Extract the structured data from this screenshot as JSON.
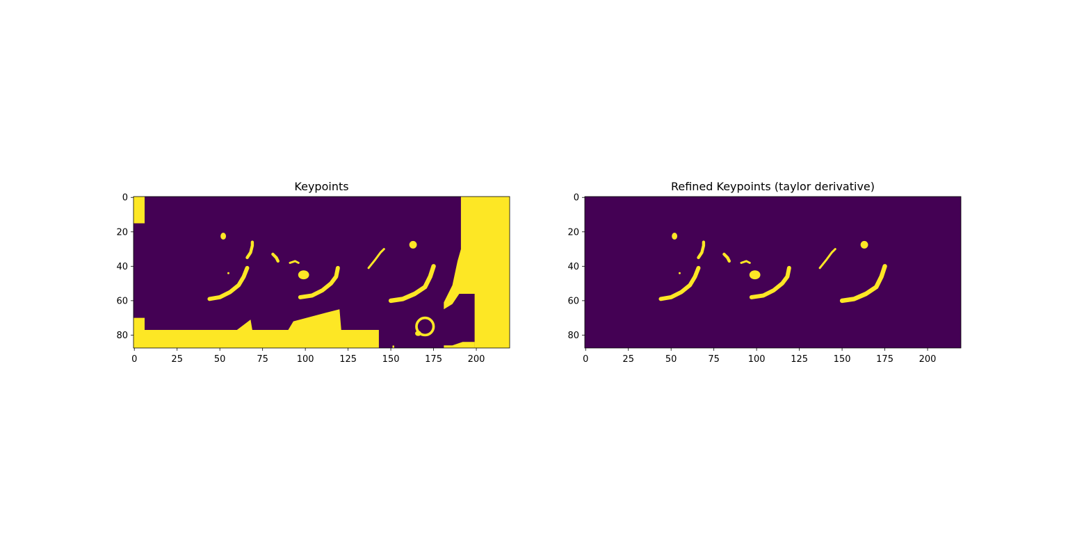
{
  "chart_data": [
    {
      "type": "heatmap",
      "title": "Keypoints",
      "image_shape": [
        88,
        220
      ],
      "colormap": "viridis (binary mask)",
      "colors": {
        "background": "#440154",
        "foreground": "#fde725"
      },
      "xticks": [
        0,
        25,
        50,
        75,
        100,
        125,
        150,
        175,
        200
      ],
      "yticks": [
        0,
        20,
        40,
        60,
        80
      ],
      "regions": [
        {
          "kind": "rect",
          "x": [
            -0.5,
            6
          ],
          "y": [
            -0.5,
            15
          ]
        },
        {
          "kind": "polygon",
          "points": [
            [
              -0.5,
              70
            ],
            [
              6,
              70
            ],
            [
              6,
              77
            ],
            [
              60,
              77
            ],
            [
              68,
              71
            ],
            [
              69,
              77
            ],
            [
              90,
              77
            ],
            [
              93,
              72
            ],
            [
              112,
              67
            ],
            [
              120,
              65
            ],
            [
              121,
              77
            ],
            [
              143,
              77
            ],
            [
              143,
              87.5
            ],
            [
              -0.5,
              87.5
            ]
          ]
        },
        {
          "kind": "polygon",
          "points": [
            [
              191,
              -0.5
            ],
            [
              219.5,
              -0.5
            ],
            [
              219.5,
              87.5
            ],
            [
              199,
              87.5
            ],
            [
              199,
              56
            ],
            [
              190,
              56
            ],
            [
              186,
              62
            ],
            [
              181,
              65
            ],
            [
              181,
              61
            ],
            [
              186,
              51
            ],
            [
              189,
              37
            ],
            [
              191,
              30
            ]
          ]
        },
        {
          "kind": "polygon",
          "points": [
            [
              181,
              87.5
            ],
            [
              199,
              87.5
            ],
            [
              199,
              84
            ],
            [
              192,
              84
            ],
            [
              186,
              86
            ],
            [
              181,
              86
            ]
          ]
        },
        {
          "kind": "rect",
          "x": [
            151,
            152
          ],
          "y": [
            86,
            87.5
          ]
        },
        {
          "kind": "ring",
          "cx": 170,
          "cy": 75,
          "rx": 5,
          "ry": 5,
          "w": 1.5
        },
        {
          "kind": "arc",
          "points": [
            [
              44,
              59
            ],
            [
              50,
              58
            ],
            [
              56,
              55
            ],
            [
              61,
              51
            ],
            [
              64,
              46
            ],
            [
              66,
              41
            ]
          ],
          "w": 2.4
        },
        {
          "kind": "arc",
          "points": [
            [
              97,
              58
            ],
            [
              104,
              57
            ],
            [
              110,
              54
            ],
            [
              115,
              50
            ],
            [
              118,
              46
            ],
            [
              119,
              41
            ]
          ],
          "w": 2.4
        },
        {
          "kind": "arc",
          "points": [
            [
              150,
              60
            ],
            [
              157,
              59
            ],
            [
              164,
              56
            ],
            [
              170,
              52
            ],
            [
              173,
              46
            ],
            [
              175,
              40
            ]
          ],
          "w": 2.6
        },
        {
          "kind": "arc",
          "points": [
            [
              66,
              35
            ],
            [
              68,
              32
            ],
            [
              69,
              28
            ],
            [
              69,
              26
            ]
          ],
          "w": 1.8
        },
        {
          "kind": "arc",
          "points": [
            [
              137,
              41
            ],
            [
              141,
              36
            ],
            [
              144,
              32
            ],
            [
              146,
              30
            ]
          ],
          "w": 1.2
        },
        {
          "kind": "arc",
          "points": [
            [
              81,
              33
            ],
            [
              83,
              35
            ],
            [
              84,
              37
            ]
          ],
          "w": 1.8
        },
        {
          "kind": "arc",
          "points": [
            [
              91,
              38
            ],
            [
              94,
              37
            ],
            [
              96,
              38
            ]
          ],
          "w": 1.2
        },
        {
          "kind": "blob",
          "cx": 52,
          "cy": 22.5,
          "rx": 1.6,
          "ry": 2
        },
        {
          "kind": "blob",
          "cx": 99,
          "cy": 45,
          "rx": 3.2,
          "ry": 2.6
        },
        {
          "kind": "blob",
          "cx": 163,
          "cy": 27.5,
          "rx": 2.2,
          "ry": 2.2
        },
        {
          "kind": "blob",
          "cx": 55,
          "cy": 44,
          "rx": 0.6,
          "ry": 0.6
        },
        {
          "kind": "blob",
          "cx": 166,
          "cy": 79,
          "rx": 1.8,
          "ry": 1.5
        }
      ]
    },
    {
      "type": "heatmap",
      "title": "Refined Keypoints (taylor derivative)",
      "image_shape": [
        88,
        220
      ],
      "colormap": "viridis (binary mask)",
      "colors": {
        "background": "#440154",
        "foreground": "#fde725"
      },
      "xticks": [
        0,
        25,
        50,
        75,
        100,
        125,
        150,
        175,
        200
      ],
      "yticks": [
        0,
        20,
        40,
        60,
        80
      ],
      "regions": [
        {
          "kind": "arc",
          "points": [
            [
              44,
              59
            ],
            [
              50,
              58
            ],
            [
              56,
              55
            ],
            [
              61,
              51
            ],
            [
              64,
              46
            ],
            [
              66,
              41
            ]
          ],
          "w": 2.4
        },
        {
          "kind": "arc",
          "points": [
            [
              97,
              58
            ],
            [
              104,
              57
            ],
            [
              110,
              54
            ],
            [
              115,
              50
            ],
            [
              118,
              46
            ],
            [
              119,
              41
            ]
          ],
          "w": 2.4
        },
        {
          "kind": "arc",
          "points": [
            [
              150,
              60
            ],
            [
              157,
              59
            ],
            [
              164,
              56
            ],
            [
              170,
              52
            ],
            [
              173,
              46
            ],
            [
              175,
              40
            ]
          ],
          "w": 2.6
        },
        {
          "kind": "arc",
          "points": [
            [
              66,
              35
            ],
            [
              68,
              32
            ],
            [
              69,
              28
            ],
            [
              69,
              26
            ]
          ],
          "w": 1.8
        },
        {
          "kind": "arc",
          "points": [
            [
              137,
              41
            ],
            [
              141,
              36
            ],
            [
              144,
              32
            ],
            [
              146,
              30
            ]
          ],
          "w": 1.2
        },
        {
          "kind": "arc",
          "points": [
            [
              81,
              33
            ],
            [
              83,
              35
            ],
            [
              84,
              37
            ]
          ],
          "w": 1.8
        },
        {
          "kind": "arc",
          "points": [
            [
              91,
              38
            ],
            [
              94,
              37
            ],
            [
              96,
              38
            ]
          ],
          "w": 1.2
        },
        {
          "kind": "blob",
          "cx": 52,
          "cy": 22.5,
          "rx": 1.6,
          "ry": 2
        },
        {
          "kind": "blob",
          "cx": 99,
          "cy": 45,
          "rx": 3.2,
          "ry": 2.6
        },
        {
          "kind": "blob",
          "cx": 163,
          "cy": 27.5,
          "rx": 2.2,
          "ry": 2.2
        },
        {
          "kind": "blob",
          "cx": 55,
          "cy": 44,
          "rx": 0.6,
          "ry": 0.6
        }
      ]
    }
  ]
}
